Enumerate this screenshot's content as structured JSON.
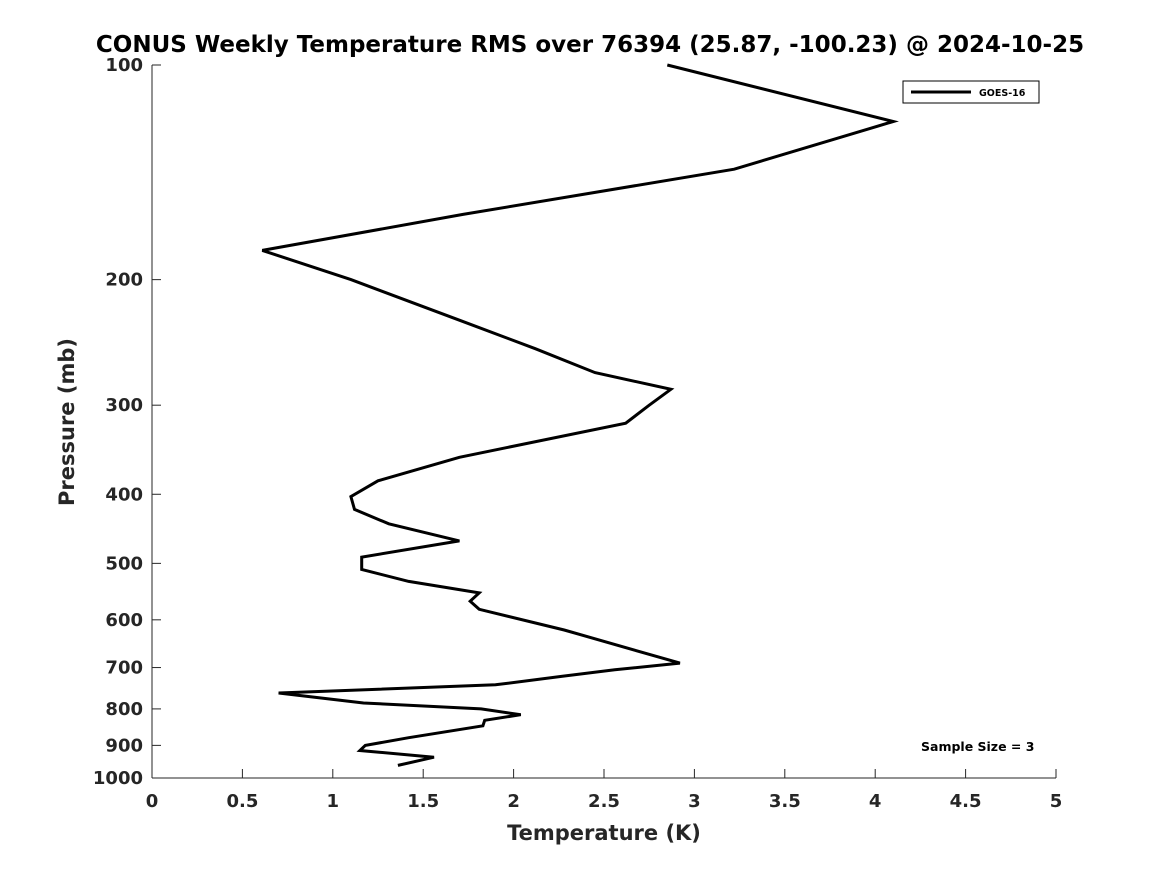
{
  "chart_data": {
    "type": "line",
    "title": "CONUS Weekly Temperature RMS over 76394 (25.87, -100.23) @ 2024-10-25",
    "xlabel": "Temperature (K)",
    "ylabel": "Pressure (mb)",
    "xlim": [
      0,
      5
    ],
    "ylim": [
      100,
      1000
    ],
    "y_scale": "log",
    "y_reversed": true,
    "grid": false,
    "legend_position": "top-right",
    "x_ticks": [
      "0",
      "0.5",
      "1",
      "1.5",
      "2",
      "2.5",
      "3",
      "3.5",
      "4",
      "4.5",
      "5"
    ],
    "y_ticks": [
      "100",
      "200",
      "300",
      "400",
      "500",
      "600",
      "700",
      "800",
      "900",
      "1000"
    ],
    "series": [
      {
        "name": "GOES-16",
        "color": "#000000",
        "points": [
          {
            "x": 2.85,
            "y": 100
          },
          {
            "x": 4.1,
            "y": 120
          },
          {
            "x": 3.22,
            "y": 140
          },
          {
            "x": 1.72,
            "y": 162
          },
          {
            "x": 0.61,
            "y": 182
          },
          {
            "x": 1.1,
            "y": 200
          },
          {
            "x": 1.7,
            "y": 228
          },
          {
            "x": 2.12,
            "y": 250
          },
          {
            "x": 2.45,
            "y": 270
          },
          {
            "x": 2.87,
            "y": 285
          },
          {
            "x": 2.75,
            "y": 300
          },
          {
            "x": 2.62,
            "y": 318
          },
          {
            "x": 1.7,
            "y": 355
          },
          {
            "x": 1.25,
            "y": 383
          },
          {
            "x": 1.1,
            "y": 403
          },
          {
            "x": 1.12,
            "y": 420
          },
          {
            "x": 1.31,
            "y": 440
          },
          {
            "x": 1.7,
            "y": 465
          },
          {
            "x": 1.16,
            "y": 490
          },
          {
            "x": 1.16,
            "y": 510
          },
          {
            "x": 1.42,
            "y": 530
          },
          {
            "x": 1.81,
            "y": 550
          },
          {
            "x": 1.76,
            "y": 565
          },
          {
            "x": 1.81,
            "y": 580
          },
          {
            "x": 2.28,
            "y": 620
          },
          {
            "x": 2.92,
            "y": 690
          },
          {
            "x": 2.56,
            "y": 705
          },
          {
            "x": 2.27,
            "y": 720
          },
          {
            "x": 1.9,
            "y": 740
          },
          {
            "x": 0.7,
            "y": 760
          },
          {
            "x": 1.17,
            "y": 785
          },
          {
            "x": 1.82,
            "y": 800
          },
          {
            "x": 2.04,
            "y": 815
          },
          {
            "x": 1.84,
            "y": 830
          },
          {
            "x": 1.83,
            "y": 845
          },
          {
            "x": 1.42,
            "y": 878
          },
          {
            "x": 1.18,
            "y": 900
          },
          {
            "x": 1.15,
            "y": 915
          },
          {
            "x": 1.56,
            "y": 935
          },
          {
            "x": 1.36,
            "y": 960
          }
        ]
      }
    ],
    "annotation": "Sample Size = 3"
  }
}
